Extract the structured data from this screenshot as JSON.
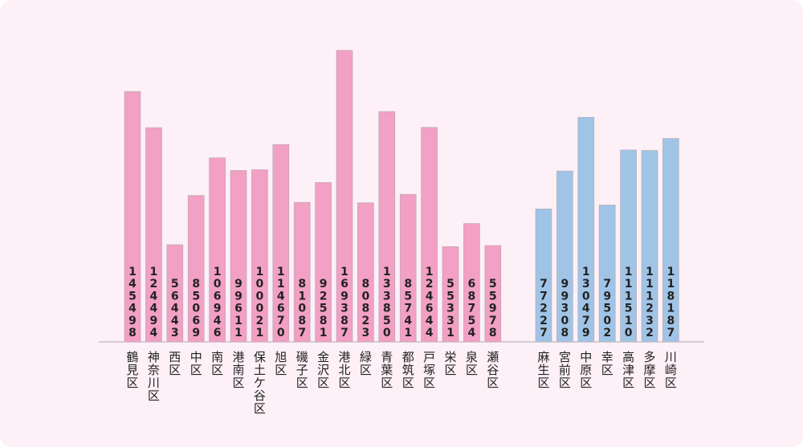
{
  "chart_data": {
    "type": "bar",
    "orientation": "vertical",
    "value_label_orientation": "vertical",
    "category_label_orientation": "vertical",
    "ylim": [
      0,
      180000
    ],
    "grid": false,
    "legend": "none",
    "colors": {
      "yokohama": "#f2a0c4",
      "kawasaki": "#a0c4e6",
      "card": "#fdf0f6",
      "axis": "#b3a9ae"
    },
    "series": [
      {
        "name": "yokohama",
        "categories": [
          "鶴見区",
          "神奈川区",
          "西区",
          "中区",
          "南区",
          "港南区",
          "保土ケ谷区",
          "旭区",
          "磯子区",
          "金沢区",
          "港北区",
          "緑区",
          "青葉区",
          "都筑区",
          "戸塚区",
          "栄区",
          "泉区",
          "瀬谷区"
        ],
        "values": [
          145498,
          124494,
          56443,
          85069,
          106946,
          99611,
          100021,
          114670,
          81087,
          92581,
          169387,
          80823,
          133850,
          85741,
          124644,
          55331,
          68754,
          55978
        ]
      },
      {
        "name": "kawasaki",
        "categories": [
          "麻生区",
          "宮前区",
          "中原区",
          "幸区",
          "高津区",
          "多摩区",
          "川崎区"
        ],
        "values": [
          77227,
          99308,
          130479,
          79502,
          111510,
          111232,
          118187
        ]
      }
    ]
  }
}
